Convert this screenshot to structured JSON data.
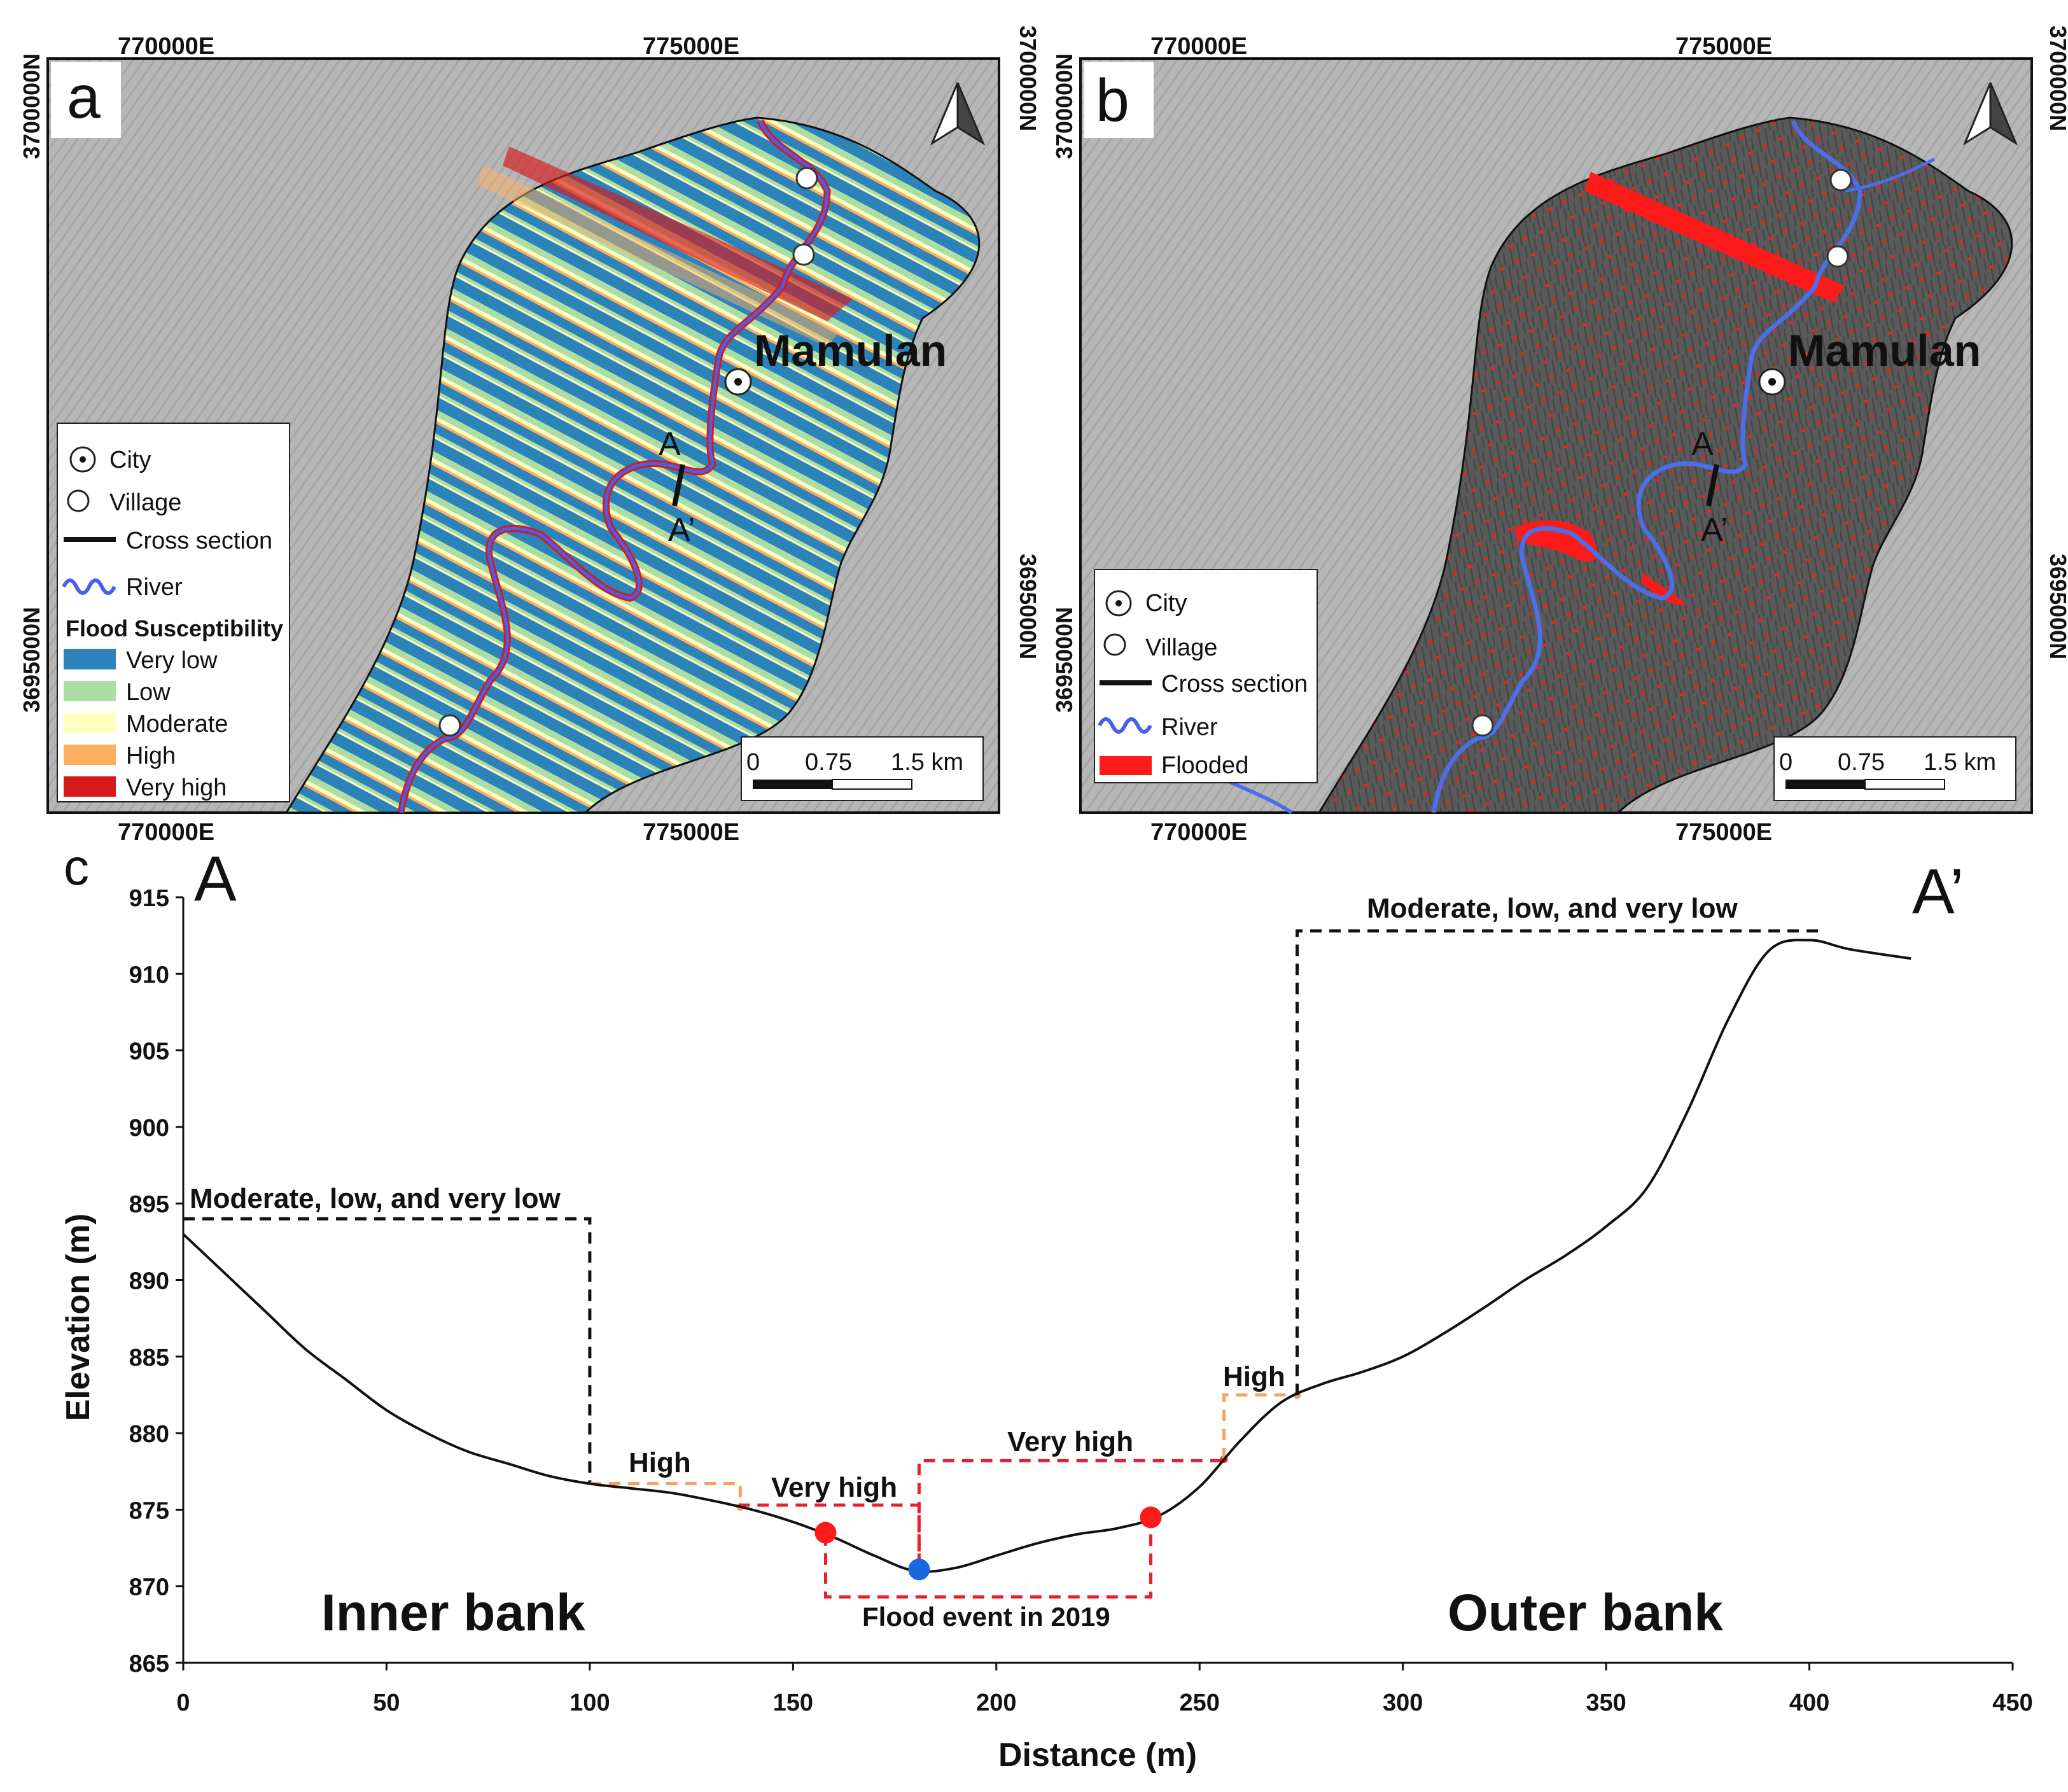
{
  "panel_a": {
    "letter": "a",
    "coord_top_left": "770000E",
    "coord_top_right": "775000E",
    "coord_bottom_left": "770000E",
    "coord_bottom_right": "775000E",
    "coord_left_upper": "3700000N",
    "coord_left_lower": "3695000N",
    "coord_right_upper": "3700000N",
    "coord_right_lower": "3695000N",
    "city_label": "Mamulan",
    "section_a": "A",
    "section_a_prime": "A’",
    "legend": {
      "city": "City",
      "village": "Village",
      "cross_section": "Cross section",
      "river": "River",
      "title": "Flood Susceptibility",
      "classes": [
        {
          "label": "Very low",
          "color": "#2b83ba"
        },
        {
          "label": "Low",
          "color": "#abdda4"
        },
        {
          "label": "Moderate",
          "color": "#ffffbf"
        },
        {
          "label": "High",
          "color": "#fdae61"
        },
        {
          "label": "Very high",
          "color": "#d7191c"
        }
      ]
    },
    "scale": {
      "s0": "0",
      "s1": "0.75",
      "s2": "1.5 km"
    }
  },
  "panel_b": {
    "letter": "b",
    "coord_top_left": "770000E",
    "coord_top_right": "775000E",
    "coord_bottom_left": "770000E",
    "coord_bottom_right": "775000E",
    "coord_left_upper": "3700000N",
    "coord_left_lower": "3695000N",
    "coord_right_upper": "3700000N",
    "coord_right_lower": "3695000N",
    "city_label": "Mamulan",
    "section_a": "A",
    "section_a_prime": "A’",
    "legend": {
      "city": "City",
      "village": "Village",
      "cross_section": "Cross section",
      "river": "River",
      "flooded": "Flooded",
      "flooded_color": "#ff1a1a"
    },
    "scale": {
      "s0": "0",
      "s1": "0.75",
      "s2": "1.5 km"
    }
  },
  "panel_c": {
    "letter": "c",
    "start_label": "A",
    "end_label": "A’",
    "inner_bank": "Inner bank",
    "outer_bank": "Outer bank",
    "zone_labels": {
      "mod_left": "Moderate, low, and very low",
      "high_left": "High",
      "vhigh_left": "Very high",
      "vhigh_right": "Very high",
      "high_right": "High",
      "mod_right": "Moderate, low, and very low",
      "flood_event": "Flood event in 2019"
    }
  },
  "chart_data": {
    "type": "line",
    "xlabel": "Distance (m)",
    "ylabel": "Elevation (m)",
    "xlim": [
      0,
      450
    ],
    "ylim": [
      865,
      915
    ],
    "xticks": [
      "0",
      "50",
      "100",
      "150",
      "200",
      "250",
      "300",
      "350",
      "400",
      "450"
    ],
    "yticks": [
      "865",
      "870",
      "875",
      "880",
      "885",
      "890",
      "895",
      "900",
      "905",
      "910",
      "915"
    ],
    "profile": {
      "x": [
        0,
        10,
        20,
        30,
        40,
        50,
        60,
        70,
        80,
        90,
        100,
        110,
        120,
        130,
        140,
        150,
        160,
        170,
        180,
        190,
        200,
        210,
        220,
        230,
        240,
        250,
        260,
        270,
        280,
        290,
        300,
        310,
        320,
        330,
        340,
        350,
        360,
        370,
        380,
        390,
        400,
        410,
        425
      ],
      "y": [
        893,
        890.5,
        888,
        885.5,
        883.5,
        881.5,
        880,
        878.8,
        878,
        877.2,
        876.7,
        876.4,
        876.1,
        875.6,
        875,
        874.2,
        873.2,
        872,
        871,
        871.2,
        872,
        872.8,
        873.4,
        873.8,
        874.6,
        876.5,
        879.5,
        882,
        883.2,
        884,
        885,
        886.5,
        888.2,
        890,
        891.6,
        893.5,
        896,
        901,
        907,
        911.5,
        912.2,
        911.6,
        911
      ]
    },
    "markers": [
      {
        "x": 158,
        "y": 873.5,
        "color": "#ff1a1a"
      },
      {
        "x": 181,
        "y": 871.1,
        "color": "#1a66dd"
      },
      {
        "x": 238,
        "y": 874.5,
        "color": "#ff1a1a"
      }
    ],
    "zones": [
      {
        "label": "Moderate, low, and very low",
        "x": [
          0,
          100
        ],
        "level": 894,
        "color": "#111111"
      },
      {
        "label": "High",
        "x": [
          100,
          137
        ],
        "level": 876.7,
        "color": "#f4a460"
      },
      {
        "label": "Very high",
        "x": [
          137,
          181
        ],
        "level": 875.3,
        "color": "#e8202a"
      },
      {
        "label": "Very high",
        "x": [
          181,
          256
        ],
        "level": 878.2,
        "color": "#e8202a"
      },
      {
        "label": "High",
        "x": [
          256,
          274
        ],
        "level": 882.5,
        "color": "#f4a460"
      },
      {
        "label": "Moderate, low, and very low",
        "x": [
          274,
          404
        ],
        "level": 912.8,
        "color": "#111111"
      },
      {
        "label": "Flood event in 2019",
        "x": [
          158,
          238
        ],
        "level": 869.3,
        "color": "#e8202a"
      }
    ]
  }
}
